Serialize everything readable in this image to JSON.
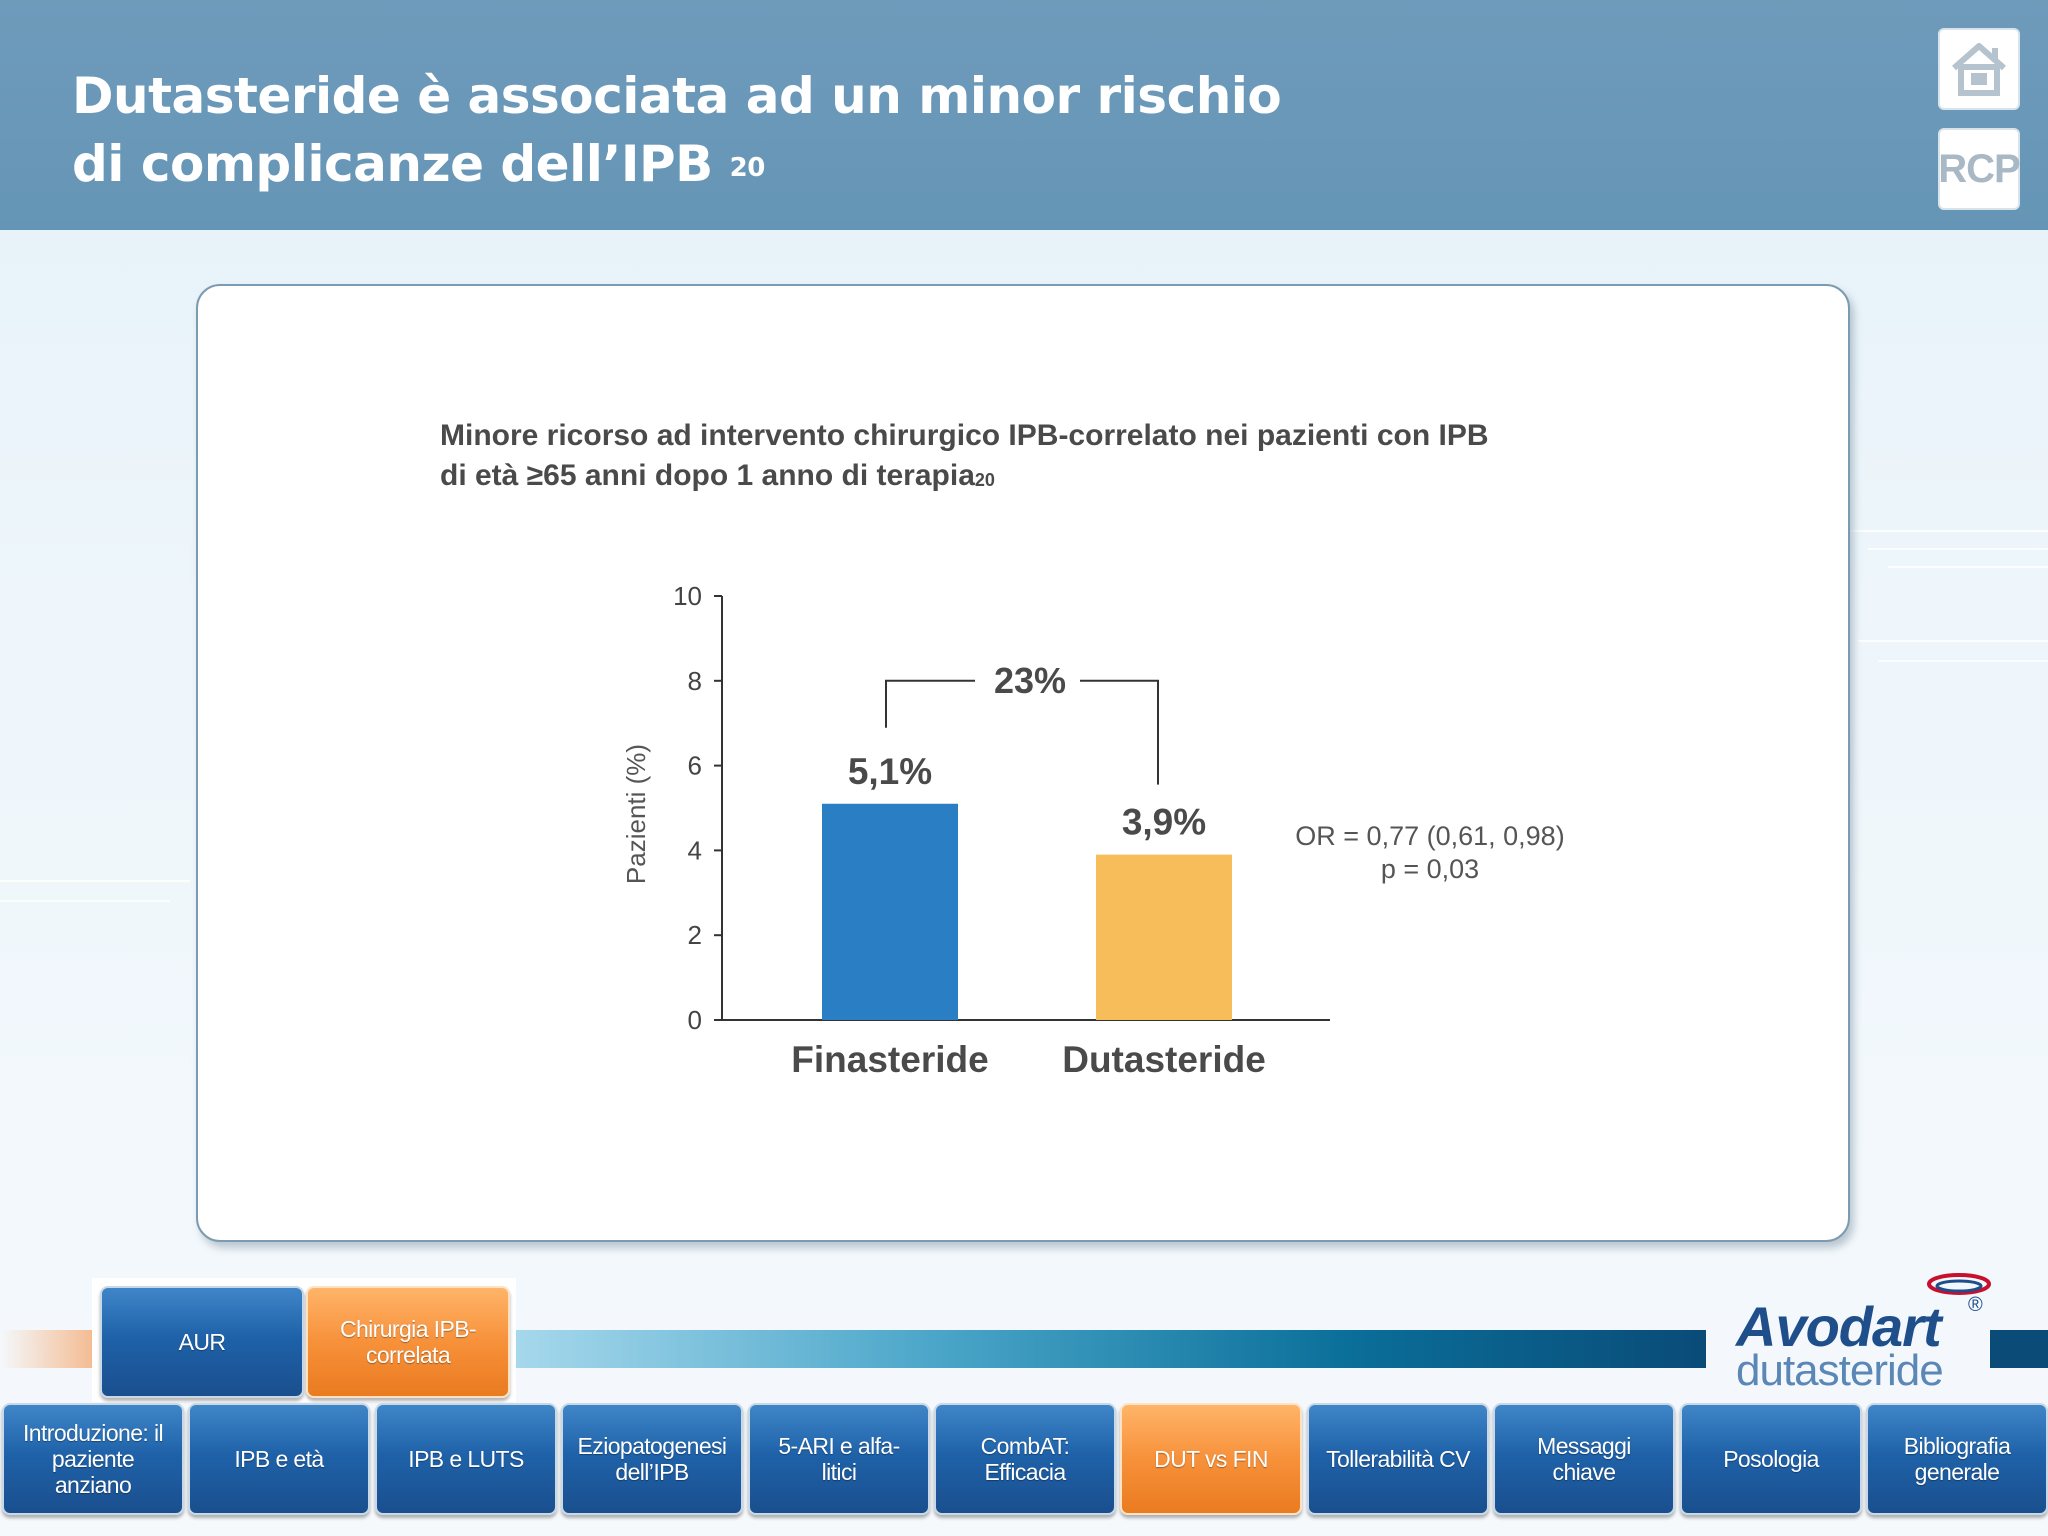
{
  "header": {
    "title_line1": "Dutasteride è associata ad un minor rischio",
    "title_line2": "di complicanze dell’IPB",
    "title_ref": "20",
    "rcp_label": "RCP"
  },
  "chart_title": {
    "line1": "Minore ricorso ad intervento chirurgico IPB-correlato nei pazienti con IPB",
    "line2": "di età ≥65 anni dopo 1 anno di terapia",
    "ref": "20"
  },
  "chart_data": {
    "type": "bar",
    "categories": [
      "Finasteride",
      "Dutasteride"
    ],
    "values": [
      5.1,
      3.9
    ],
    "value_labels": [
      "5,1%",
      "3,9%"
    ],
    "colors": [
      "#2a7fc4",
      "#f7bd5a"
    ],
    "ylabel": "Pazienti (%)",
    "ylim": [
      0,
      10
    ],
    "yticks": [
      0,
      2,
      4,
      6,
      8,
      10
    ],
    "bracket_label": "23%",
    "stats_line1": "OR = 0,77 (0,61, 0,98)",
    "stats_line2": "p = 0,03"
  },
  "subnav": [
    {
      "label": "AUR",
      "style": "blue"
    },
    {
      "label": "Chirurgia IPB-correlata",
      "style": "orange"
    }
  ],
  "logo": {
    "brand": "Avodart",
    "reg": "®",
    "generic": "dutasteride"
  },
  "nav": [
    {
      "label": "Introduzione: il paziente anziano",
      "style": "blue"
    },
    {
      "label": "IPB e età",
      "style": "blue"
    },
    {
      "label": "IPB e LUTS",
      "style": "blue"
    },
    {
      "label": "Eziopatogenesi dell’IPB",
      "style": "blue"
    },
    {
      "label": "5-ARI e alfa-litici",
      "style": "blue"
    },
    {
      "label": "CombAT: Efficacia",
      "style": "blue"
    },
    {
      "label": "DUT vs FIN",
      "style": "orange"
    },
    {
      "label": "Tollerabilità CV",
      "style": "blue"
    },
    {
      "label": "Messaggi chiave",
      "style": "blue"
    },
    {
      "label": "Posologia",
      "style": "blue"
    },
    {
      "label": "Bibliografia generale",
      "style": "blue"
    }
  ]
}
